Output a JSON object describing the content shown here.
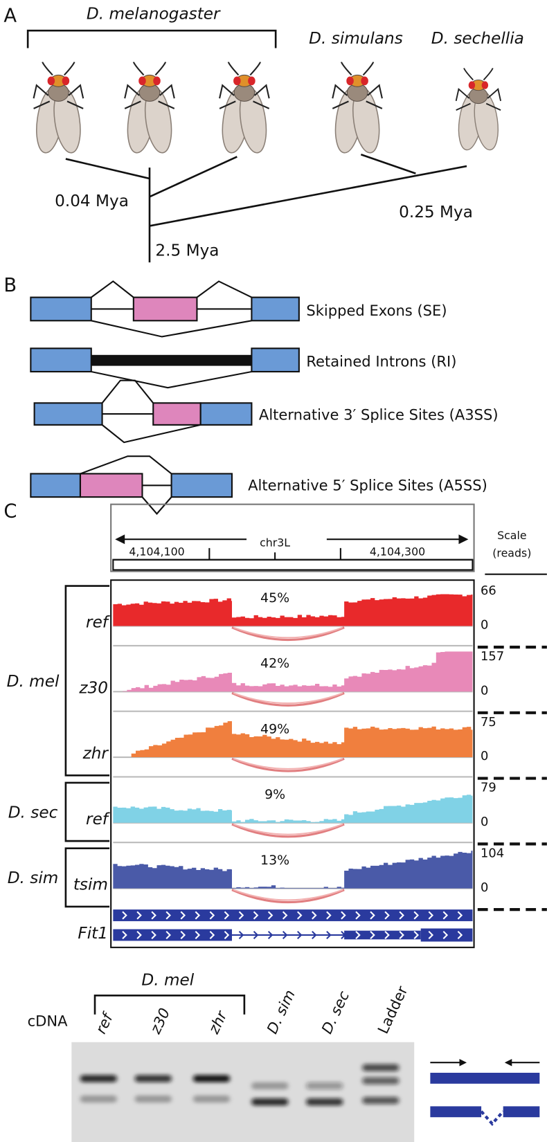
{
  "panel_a": {
    "label": "A",
    "bracket_label": "D. melanogaster",
    "species": [
      "D. simulans",
      "D. sechellia"
    ],
    "times": [
      "0.04 Mya",
      "2.5 Mya",
      "0.25 Mya"
    ]
  },
  "panel_b": {
    "label": "B",
    "events": [
      "Skipped Exons (SE)",
      "Retained Introns (RI)",
      "Alternative 3′ Splice Sites (A3SS)",
      "Alternative 5′ Splice Sites (A5SS)"
    ]
  },
  "panel_c": {
    "label": "C",
    "chromosome": "chr3L",
    "coordinates": [
      "4,104,100",
      "4,104,300"
    ],
    "scale_label": [
      "Scale",
      "(reads)"
    ],
    "groups": [
      {
        "name": "D. mel",
        "tracks": [
          {
            "sample": "ref",
            "psi": "45%",
            "max": "66",
            "min": "0"
          },
          {
            "sample": "z30",
            "psi": "42%",
            "max": "157",
            "min": "0"
          },
          {
            "sample": "zhr",
            "psi": "49%",
            "max": "75",
            "min": "0"
          }
        ]
      },
      {
        "name": "D. sec",
        "tracks": [
          {
            "sample": "ref",
            "psi": "9%",
            "max": "79",
            "min": "0"
          }
        ]
      },
      {
        "name": "D. sim",
        "tracks": [
          {
            "sample": "tsim",
            "psi": "13%",
            "max": "104",
            "min": "0"
          }
        ]
      }
    ],
    "gene": "Fit1"
  },
  "gel": {
    "group_label": "D. mel",
    "row_label": "cDNA",
    "lanes": [
      "ref",
      "z30",
      "zhr",
      "D. sim",
      "D. sec",
      "Ladder"
    ]
  }
}
